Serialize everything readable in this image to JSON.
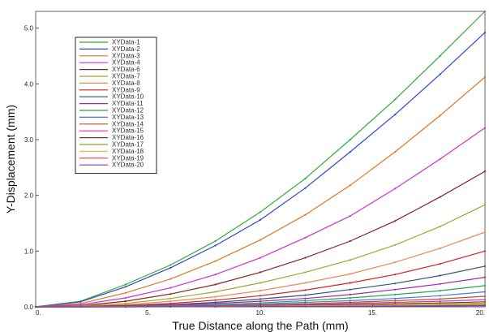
{
  "chart_data": {
    "type": "line",
    "title": "",
    "xlabel": "True Distance along the Path  (mm)",
    "ylabel": "Y-Displacement  (mm)",
    "xlim": [
      0,
      20
    ],
    "ylim": [
      0,
      5.3
    ],
    "x_ticks": [
      0,
      5,
      10,
      15,
      20
    ],
    "x_tick_labels": [
      "0.",
      "5.",
      "10.",
      "15.",
      "20."
    ],
    "y_ticks": [
      0,
      1,
      2,
      3,
      4,
      5
    ],
    "y_tick_labels": [
      "0.0",
      "1.0",
      "2.0",
      "3.0",
      "4.0",
      "5.0"
    ],
    "grid": false,
    "legend_position": "top-left",
    "x": [
      0,
      2,
      4,
      6,
      8,
      10,
      12,
      14,
      16,
      18,
      20
    ],
    "series": [
      {
        "name": "XYData-1",
        "color": "#33aa33",
        "values": [
          0,
          0.1,
          0.4,
          0.75,
          1.18,
          1.7,
          2.3,
          3.0,
          3.72,
          4.5,
          5.3
        ]
      },
      {
        "name": "XYData-2",
        "color": "#3344cc",
        "values": [
          0,
          0.09,
          0.36,
          0.7,
          1.1,
          1.56,
          2.13,
          2.78,
          3.45,
          4.17,
          4.92
        ]
      },
      {
        "name": "XYData-3",
        "color": "#dd7722",
        "values": [
          0,
          0.06,
          0.25,
          0.5,
          0.82,
          1.2,
          1.65,
          2.18,
          2.78,
          3.43,
          4.12
        ]
      },
      {
        "name": "XYData-4",
        "color": "#cc33cc",
        "values": [
          0,
          0.04,
          0.16,
          0.34,
          0.58,
          0.88,
          1.24,
          1.63,
          2.12,
          2.65,
          3.21
        ]
      },
      {
        "name": "XYData-6",
        "color": "#882222",
        "values": [
          0,
          0.02,
          0.1,
          0.23,
          0.4,
          0.62,
          0.88,
          1.18,
          1.54,
          1.97,
          2.43
        ]
      },
      {
        "name": "XYData-7",
        "color": "#99aa33",
        "values": [
          0,
          0.015,
          0.06,
          0.15,
          0.27,
          0.43,
          0.62,
          0.84,
          1.11,
          1.44,
          1.83
        ]
      },
      {
        "name": "XYData-8",
        "color": "#ee8855",
        "values": [
          0,
          0.01,
          0.04,
          0.1,
          0.18,
          0.29,
          0.43,
          0.59,
          0.8,
          1.05,
          1.34
        ]
      },
      {
        "name": "XYData-9",
        "color": "#cc2222",
        "values": [
          0,
          0.006,
          0.025,
          0.06,
          0.12,
          0.2,
          0.3,
          0.43,
          0.58,
          0.77,
          1.0
        ]
      },
      {
        "name": "XYData-10",
        "color": "#335577",
        "values": [
          0,
          0.004,
          0.015,
          0.04,
          0.08,
          0.14,
          0.21,
          0.31,
          0.42,
          0.56,
          0.73
        ]
      },
      {
        "name": "XYData-11",
        "color": "#aa22aa",
        "values": [
          0,
          0.003,
          0.01,
          0.03,
          0.06,
          0.1,
          0.15,
          0.22,
          0.31,
          0.41,
          0.53
        ]
      },
      {
        "name": "XYData-12",
        "color": "#22aa55",
        "values": [
          0,
          0.002,
          0.008,
          0.02,
          0.04,
          0.07,
          0.11,
          0.16,
          0.22,
          0.29,
          0.38
        ]
      },
      {
        "name": "XYData-13",
        "color": "#4477dd",
        "values": [
          0,
          0.001,
          0.005,
          0.014,
          0.028,
          0.05,
          0.08,
          0.11,
          0.15,
          0.2,
          0.27
        ]
      },
      {
        "name": "XYData-14",
        "color": "#bb5522",
        "values": [
          0,
          0.001,
          0.004,
          0.01,
          0.02,
          0.035,
          0.055,
          0.08,
          0.11,
          0.14,
          0.19
        ]
      },
      {
        "name": "XYData-15",
        "color": "#dd33aa",
        "values": [
          0,
          0.001,
          0.003,
          0.007,
          0.014,
          0.025,
          0.04,
          0.06,
          0.08,
          0.1,
          0.13
        ]
      },
      {
        "name": "XYData-16",
        "color": "#664433",
        "values": [
          0,
          0.0,
          0.002,
          0.005,
          0.01,
          0.017,
          0.027,
          0.04,
          0.055,
          0.07,
          0.09
        ]
      },
      {
        "name": "XYData-17",
        "color": "#88aa22",
        "values": [
          0,
          0.0,
          0.001,
          0.003,
          0.007,
          0.012,
          0.019,
          0.028,
          0.038,
          0.05,
          0.065
        ]
      },
      {
        "name": "XYData-18",
        "color": "#ffaa55",
        "values": [
          0,
          0.0,
          0.001,
          0.002,
          0.005,
          0.008,
          0.013,
          0.019,
          0.026,
          0.034,
          0.045
        ]
      },
      {
        "name": "XYData-19",
        "color": "#dd4444",
        "values": [
          0,
          0.0,
          0.0,
          0.001,
          0.003,
          0.005,
          0.008,
          0.012,
          0.017,
          0.022,
          0.03
        ]
      },
      {
        "name": "XYData-20",
        "color": "#6644bb",
        "values": [
          0,
          0.0,
          0.0,
          0.001,
          0.002,
          0.003,
          0.005,
          0.007,
          0.01,
          0.014,
          0.02
        ]
      }
    ]
  }
}
